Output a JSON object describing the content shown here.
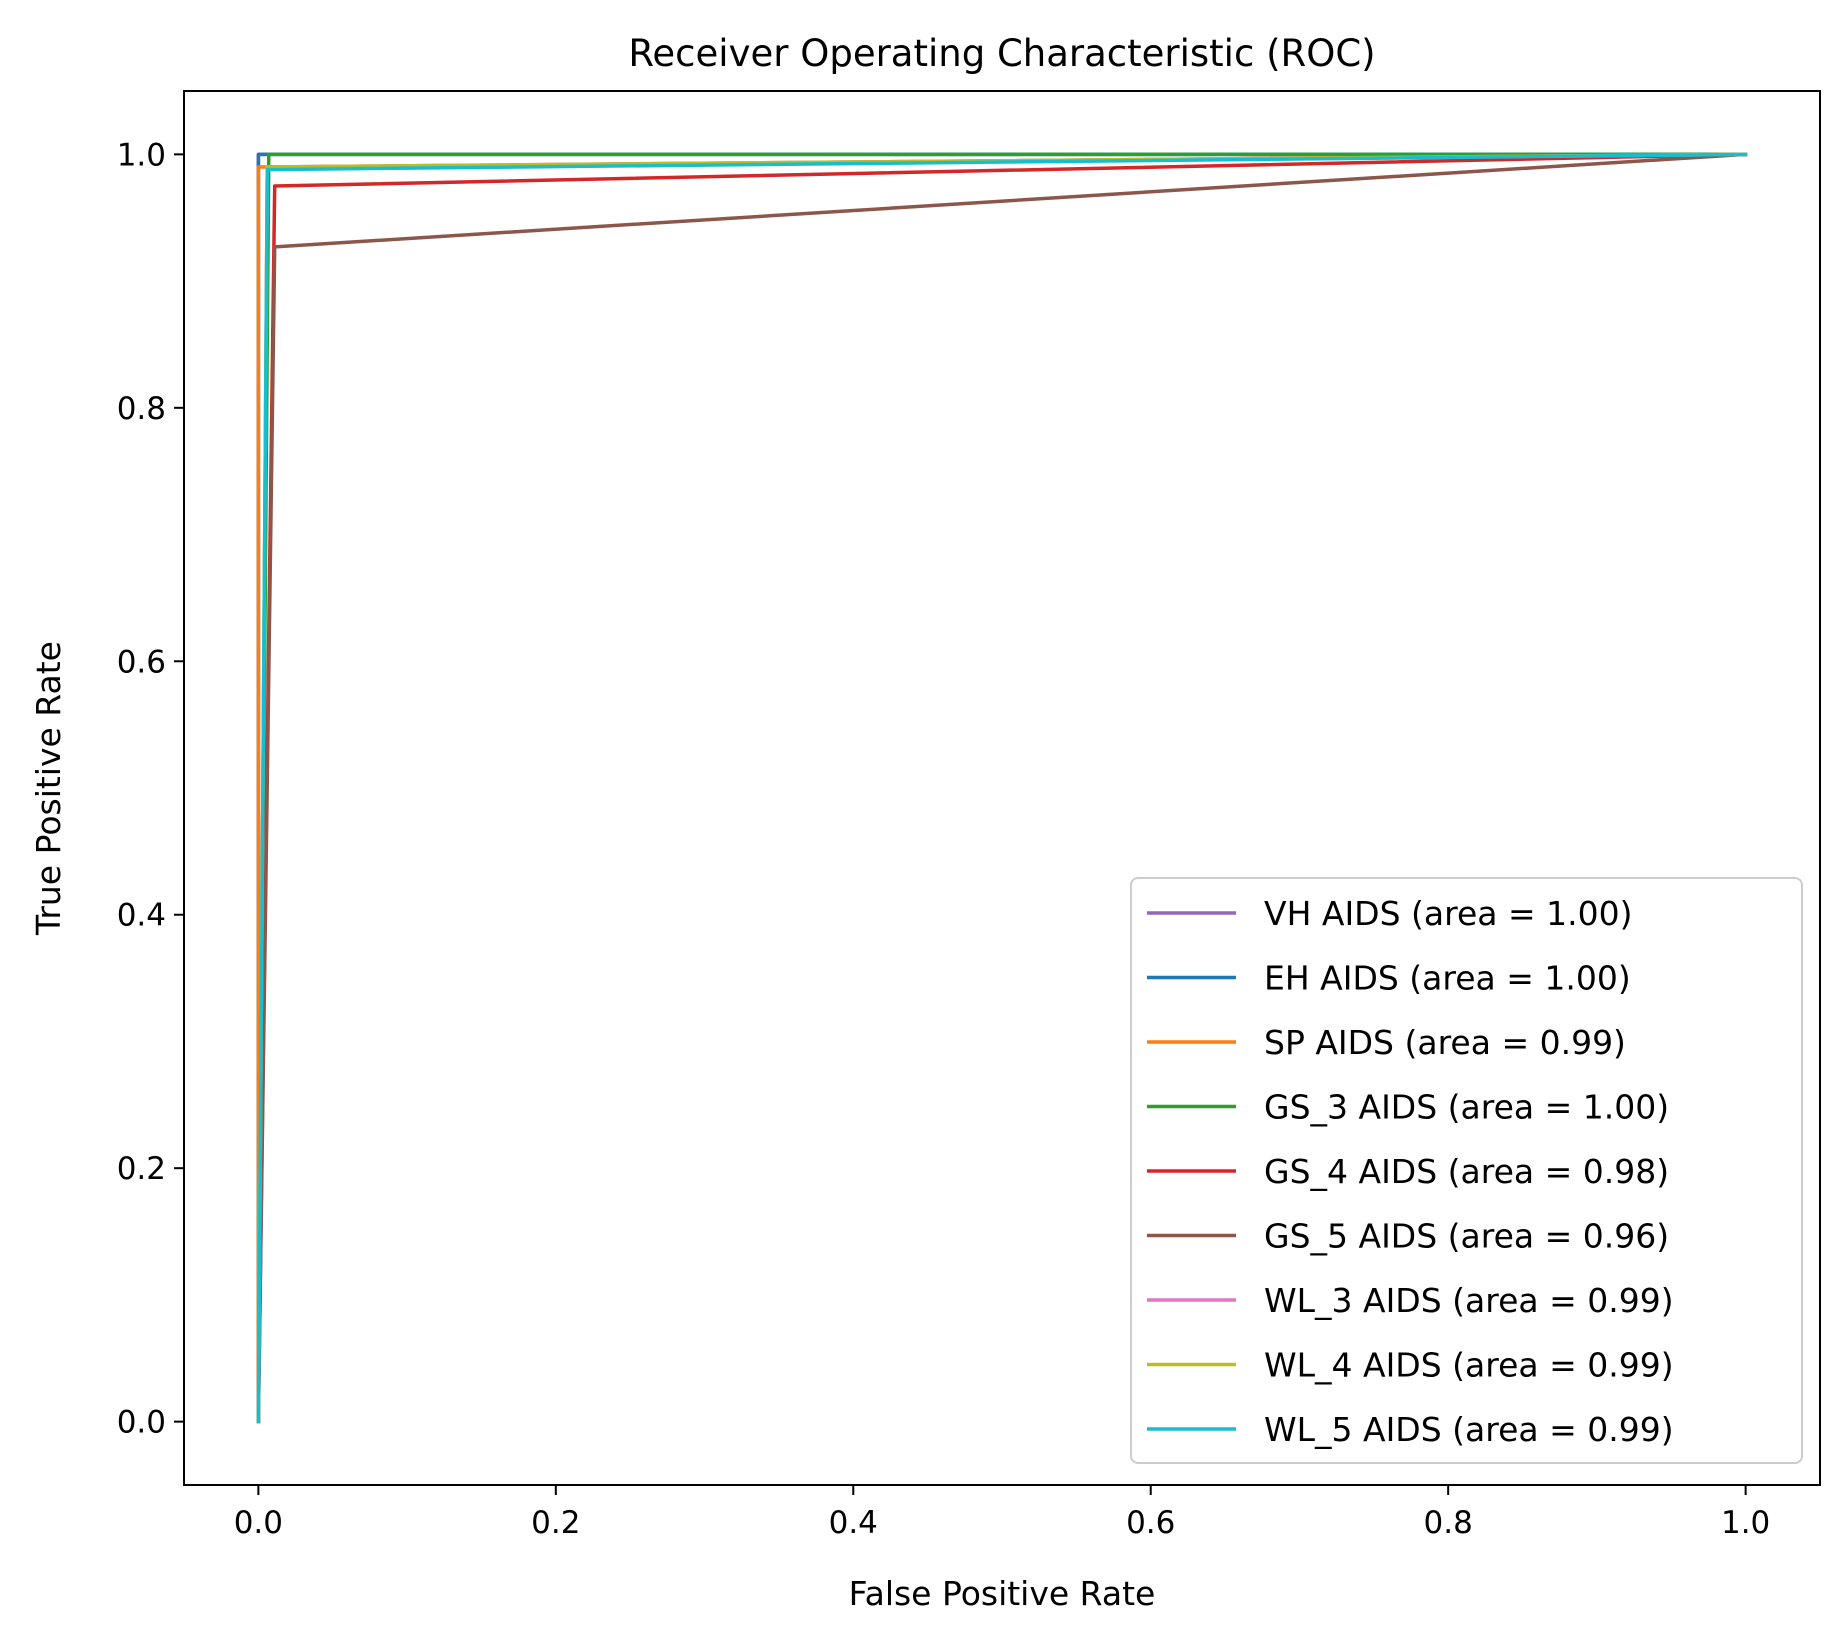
{
  "chart_data": {
    "type": "line",
    "title": "Receiver Operating Characteristic (ROC)",
    "xlabel": "False Positive Rate",
    "ylabel": "True Positive Rate",
    "xlim": [
      -0.05,
      1.05
    ],
    "ylim": [
      -0.05,
      1.05
    ],
    "xticks": [
      0.0,
      0.2,
      0.4,
      0.6,
      0.8,
      1.0
    ],
    "yticks": [
      0.0,
      0.2,
      0.4,
      0.6,
      0.8,
      1.0
    ],
    "xtick_labels": [
      "0.0",
      "0.2",
      "0.4",
      "0.6",
      "0.8",
      "1.0"
    ],
    "ytick_labels": [
      "0.0",
      "0.2",
      "0.4",
      "0.6",
      "0.8",
      "1.0"
    ],
    "grid": false,
    "legend_position": "lower-right",
    "series": [
      {
        "name": "VH AIDS (area = 1.00)",
        "color": "#9467bd",
        "x": [
          0.0,
          0.0,
          1.0
        ],
        "y": [
          0.0,
          1.0,
          1.0
        ]
      },
      {
        "name": "EH AIDS (area = 1.00)",
        "color": "#1f77b4",
        "x": [
          0.0,
          0.0,
          1.0
        ],
        "y": [
          0.0,
          1.0,
          1.0
        ]
      },
      {
        "name": "SP AIDS (area = 0.99)",
        "color": "#ff7f0e",
        "x": [
          0.0,
          0.0,
          1.0
        ],
        "y": [
          0.0,
          0.99,
          1.0
        ]
      },
      {
        "name": "GS_3 AIDS (area = 1.00)",
        "color": "#2ca02c",
        "x": [
          0.0,
          0.007,
          1.0
        ],
        "y": [
          0.0,
          1.0,
          1.0
        ]
      },
      {
        "name": "GS_4 AIDS (area = 0.98)",
        "color": "#d62728",
        "x": [
          0.0,
          0.011,
          1.0
        ],
        "y": [
          0.0,
          0.975,
          1.0
        ]
      },
      {
        "name": "GS_5 AIDS (area = 0.96)",
        "color": "#8c564b",
        "x": [
          0.0,
          0.011,
          1.0
        ],
        "y": [
          0.0,
          0.927,
          1.0
        ]
      },
      {
        "name": "WL_3 AIDS (area = 0.99)",
        "color": "#e377c2",
        "x": [
          0.0,
          0.006,
          1.0
        ],
        "y": [
          0.0,
          0.99,
          1.0
        ]
      },
      {
        "name": "WL_4 AIDS (area = 0.99)",
        "color": "#bcbd22",
        "x": [
          0.0,
          0.006,
          1.0
        ],
        "y": [
          0.0,
          0.99,
          1.0
        ]
      },
      {
        "name": "WL_5 AIDS (area = 0.99)",
        "color": "#17becf",
        "x": [
          0.0,
          0.006,
          1.0
        ],
        "y": [
          0.0,
          0.988,
          1.0
        ]
      }
    ]
  }
}
